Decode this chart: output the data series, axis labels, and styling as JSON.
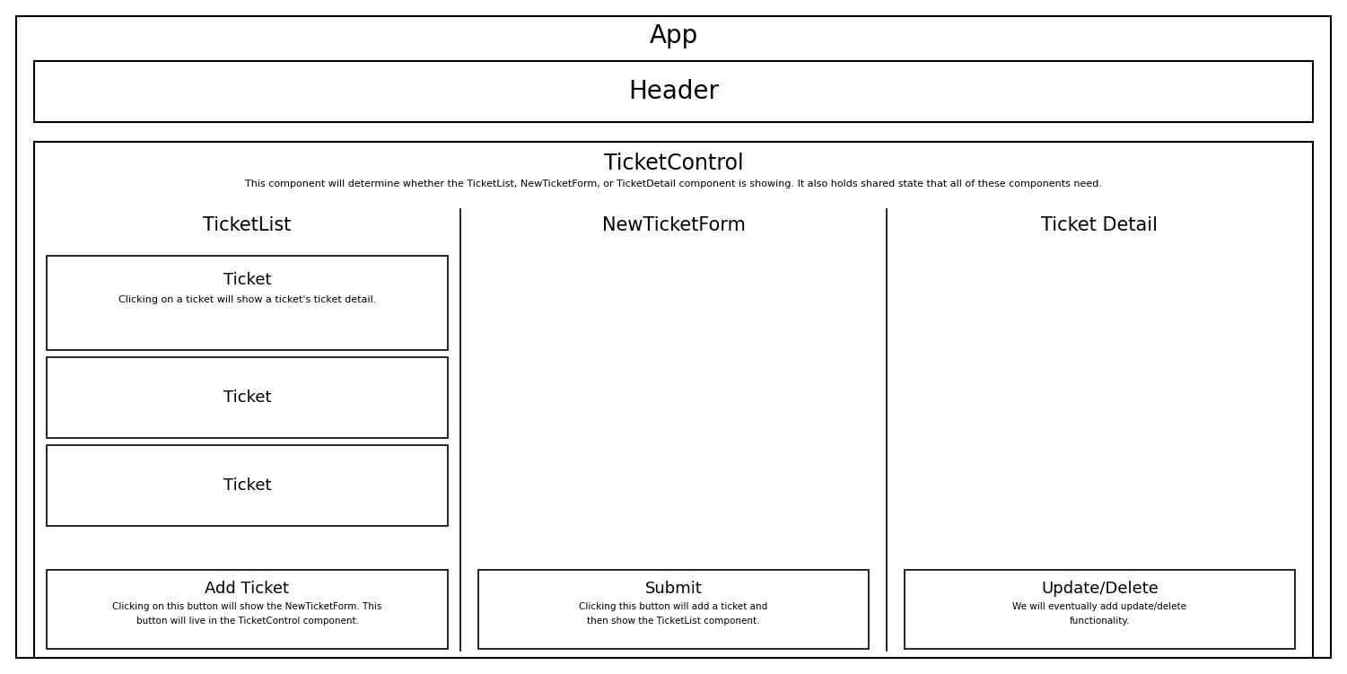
{
  "bg_color": "#ffffff",
  "fig_width": 15.01,
  "fig_height": 7.51,
  "dpi": 100,
  "app_label": "App",
  "header_label": "Header",
  "ticket_control_label": "TicketControl",
  "ticket_control_sublabel": "This component will determine whether the TicketList, NewTicketForm, or TicketDetail component is showing. It also holds shared state that all of these components need.",
  "col1_label": "TicketList",
  "col2_label": "NewTicketForm",
  "col3_label": "Ticket Detail",
  "ticket1_label": "Ticket",
  "ticket1_sub": "Clicking on a ticket will show a ticket's ticket detail.",
  "ticket2_label": "Ticket",
  "ticket3_label": "Ticket",
  "add_ticket_label": "Add Ticket",
  "add_ticket_sub1": "Clicking on this button will show the NewTicketForm. This",
  "add_ticket_sub2": "button will live in the TicketControl component.",
  "submit_label": "Submit",
  "submit_sub1": "Clicking this button will add a ticket and",
  "submit_sub2": "then show the TicketList component.",
  "update_label": "Update/Delete",
  "update_sub1": "We will eventually add update/delete",
  "update_sub2": "functionality.",
  "font_family": "DejaVu Sans"
}
